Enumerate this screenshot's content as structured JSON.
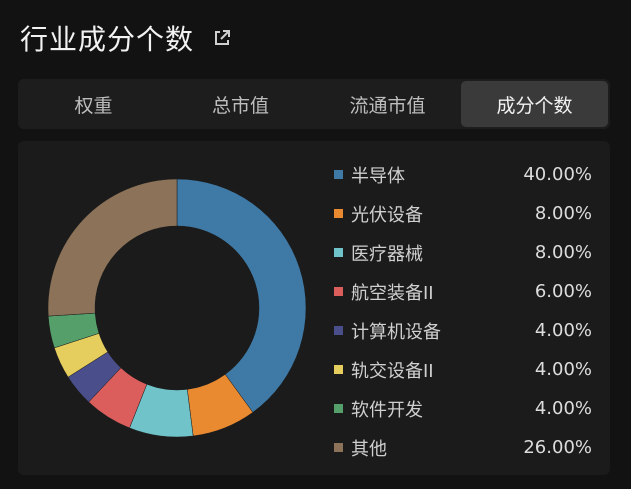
{
  "header": {
    "title": "行业成分个数",
    "link_icon": "external-link-icon"
  },
  "tabs": [
    {
      "label": "权重",
      "active": false
    },
    {
      "label": "总市值",
      "active": false
    },
    {
      "label": "流通市值",
      "active": false
    },
    {
      "label": "成分个数",
      "active": true
    }
  ],
  "chart_data": {
    "type": "pie",
    "donut": true,
    "categories": [
      "半导体",
      "光伏设备",
      "医疗器械",
      "航空装备II",
      "计算机设备",
      "轨交设备II",
      "软件开发",
      "其他"
    ],
    "values": [
      40.0,
      8.0,
      8.0,
      6.0,
      4.0,
      4.0,
      4.0,
      26.0
    ],
    "value_labels": [
      "40.00%",
      "8.00%",
      "8.00%",
      "6.00%",
      "4.00%",
      "4.00%",
      "4.00%",
      "26.00%"
    ],
    "colors": [
      "#3f7aa6",
      "#e98a30",
      "#6fc3c9",
      "#db5d5c",
      "#4a4f8c",
      "#e5cd5e",
      "#55a06a",
      "#8b7258"
    ],
    "legend_position": "right"
  }
}
